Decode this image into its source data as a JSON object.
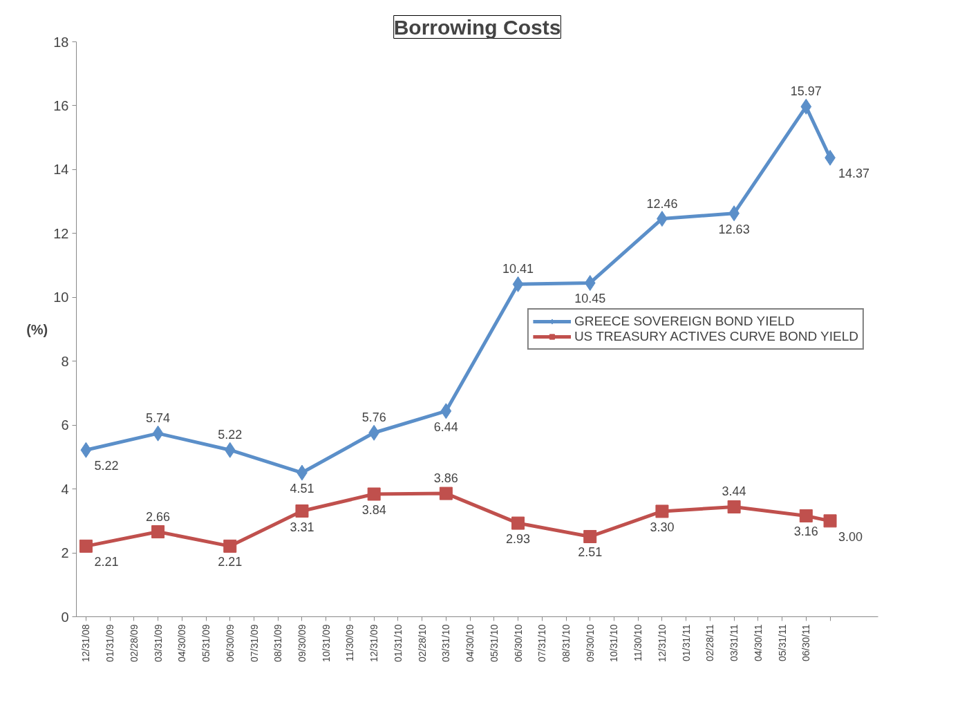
{
  "chart_data": {
    "type": "line",
    "title": "Borrowing Costs",
    "ylabel": "(%)",
    "categories": [
      "12/31/08",
      "01/31/09",
      "02/28/09",
      "03/31/09",
      "04/30/09",
      "05/31/09",
      "06/30/09",
      "07/31/09",
      "08/31/09",
      "09/30/09",
      "10/31/09",
      "11/30/09",
      "12/31/09",
      "01/31/10",
      "02/28/10",
      "03/31/10",
      "04/30/10",
      "05/31/10",
      "06/30/10",
      "07/31/10",
      "08/31/10",
      "09/30/10",
      "10/31/10",
      "11/30/10",
      "12/31/10",
      "01/31/11",
      "02/28/11",
      "03/31/11",
      "04/30/11",
      "05/31/11",
      "06/30/11",
      null
    ],
    "series": [
      {
        "name": "GREECE SOVEREIGN BOND YIELD",
        "color": "#5b8fc9",
        "marker": "diamond",
        "values": [
          5.22,
          null,
          null,
          5.74,
          null,
          null,
          5.22,
          null,
          null,
          4.51,
          null,
          null,
          5.76,
          null,
          null,
          6.44,
          null,
          null,
          10.41,
          null,
          null,
          10.45,
          null,
          null,
          12.46,
          null,
          null,
          12.63,
          null,
          null,
          15.97,
          14.37
        ],
        "value_labels": [
          "5.22",
          null,
          null,
          "5.74",
          null,
          null,
          "5.22",
          null,
          null,
          "4.51",
          null,
          null,
          "5.76",
          null,
          null,
          "6.44",
          null,
          null,
          "10.41",
          null,
          null,
          "10.45",
          null,
          null,
          "12.46",
          null,
          null,
          "12.63",
          null,
          null,
          "15.97",
          "14.37"
        ]
      },
      {
        "name": "US TREASURY ACTIVES CURVE BOND YIELD",
        "color": "#c0504d",
        "marker": "square",
        "values": [
          2.21,
          null,
          null,
          2.66,
          null,
          null,
          2.21,
          null,
          null,
          3.31,
          null,
          null,
          3.84,
          null,
          null,
          3.86,
          null,
          null,
          2.93,
          null,
          null,
          2.51,
          null,
          null,
          3.3,
          null,
          null,
          3.44,
          null,
          null,
          3.16,
          3.0
        ],
        "value_labels": [
          "2.21",
          null,
          null,
          "2.66",
          null,
          null,
          "2.21",
          null,
          null,
          "3.31",
          null,
          null,
          "3.84",
          null,
          null,
          "3.86",
          null,
          null,
          "2.93",
          null,
          null,
          "2.51",
          null,
          null,
          "3.30",
          null,
          null,
          "3.44",
          null,
          null,
          "3.16",
          "3.00"
        ]
      }
    ],
    "ylim": [
      0,
      18
    ],
    "yticks": [
      0,
      2,
      4,
      6,
      8,
      10,
      12,
      14,
      16,
      18
    ],
    "grid": false,
    "legend": "right",
    "line_style": "solid"
  }
}
